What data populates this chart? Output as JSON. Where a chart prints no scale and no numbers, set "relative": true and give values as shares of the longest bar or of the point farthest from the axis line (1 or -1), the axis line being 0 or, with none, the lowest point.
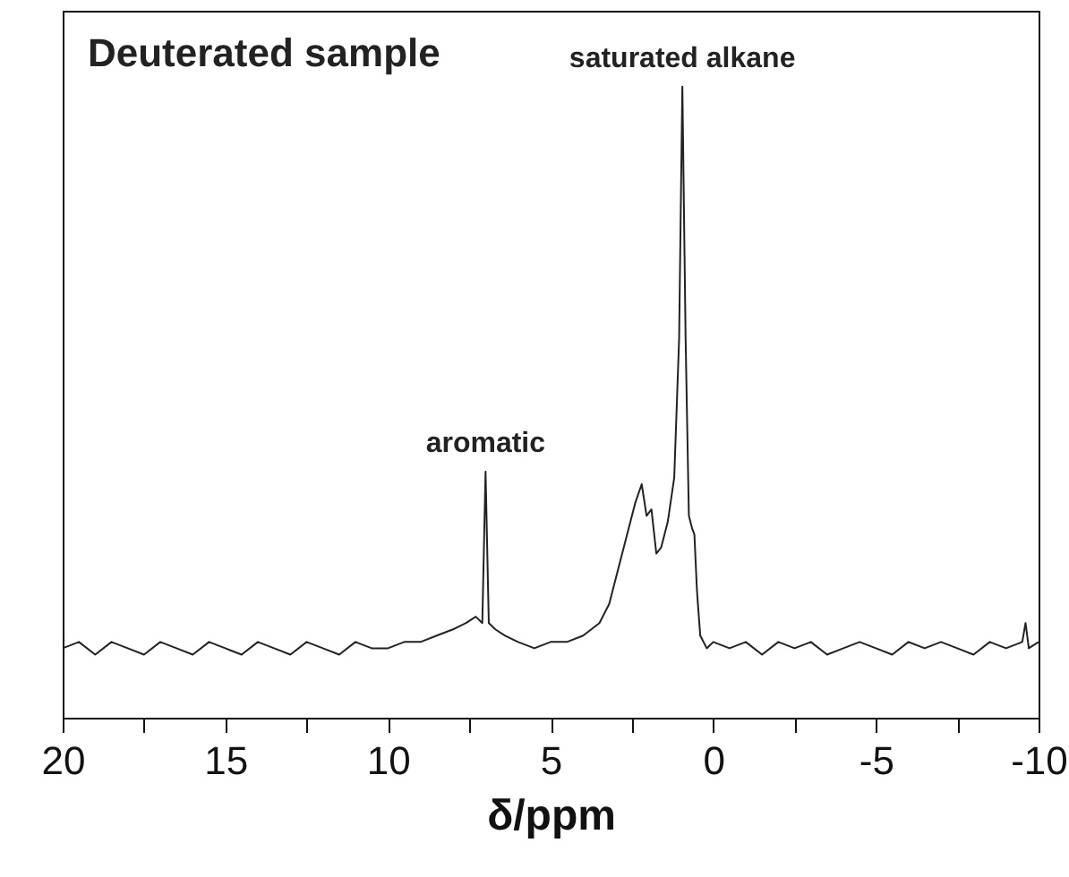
{
  "chart_data": {
    "type": "line",
    "title": "Deuterated sample",
    "xlabel": "δ/ppm",
    "relative": true,
    "xlim": [
      20,
      -10
    ],
    "xticks": [
      20,
      {
        "value": 17.5,
        "label": null
      },
      15,
      {
        "value": 12.5,
        "label": null
      },
      10,
      {
        "value": 7.5,
        "label": null
      },
      5,
      {
        "value": 2.5,
        "label": null
      },
      0,
      {
        "value": -2.5,
        "label": null
      },
      -5,
      {
        "value": -7.5,
        "label": null
      },
      -10
    ],
    "annotations": [
      {
        "text": "aromatic",
        "x": 7.0,
        "y": 0.39
      },
      {
        "text": "saturated alkane",
        "x": 0.95,
        "y": 1.0
      }
    ],
    "series": [
      {
        "color": "#222222",
        "x": [
          20,
          19.5,
          19,
          18.5,
          18,
          17.5,
          17,
          16.5,
          16,
          15.5,
          15,
          14.5,
          14,
          13.5,
          13,
          12.5,
          12,
          11.5,
          11,
          10.5,
          10,
          9.5,
          9,
          8.5,
          8,
          7.6,
          7.3,
          7.1,
          7.0,
          6.9,
          6.7,
          6.4,
          6,
          5.5,
          5,
          4.5,
          4,
          3.5,
          3.2,
          3.0,
          2.7,
          2.4,
          2.2,
          2.05,
          1.9,
          1.75,
          1.6,
          1.4,
          1.2,
          1.05,
          0.95,
          0.85,
          0.75,
          0.65,
          0.58,
          0.5,
          0.4,
          0.2,
          0,
          -0.5,
          -1,
          -1.5,
          -2,
          -2.5,
          -3,
          -3.5,
          -4,
          -4.5,
          -5,
          -5.5,
          -6,
          -6.5,
          -7,
          -7.5,
          -8,
          -8.5,
          -9,
          -9.5,
          -9.6,
          -9.7,
          -10
        ],
        "values": [
          0.11,
          0.12,
          0.1,
          0.12,
          0.11,
          0.1,
          0.12,
          0.11,
          0.1,
          0.12,
          0.11,
          0.1,
          0.12,
          0.11,
          0.1,
          0.12,
          0.11,
          0.1,
          0.12,
          0.11,
          0.11,
          0.12,
          0.12,
          0.13,
          0.14,
          0.15,
          0.16,
          0.15,
          0.39,
          0.15,
          0.14,
          0.13,
          0.12,
          0.11,
          0.12,
          0.12,
          0.13,
          0.15,
          0.18,
          0.22,
          0.28,
          0.34,
          0.37,
          0.32,
          0.33,
          0.26,
          0.27,
          0.31,
          0.38,
          0.6,
          1.0,
          0.6,
          0.32,
          0.3,
          0.29,
          0.2,
          0.13,
          0.11,
          0.12,
          0.11,
          0.12,
          0.1,
          0.12,
          0.11,
          0.12,
          0.1,
          0.11,
          0.12,
          0.11,
          0.1,
          0.12,
          0.11,
          0.12,
          0.11,
          0.1,
          0.12,
          0.11,
          0.12,
          0.15,
          0.11,
          0.12
        ]
      }
    ]
  }
}
